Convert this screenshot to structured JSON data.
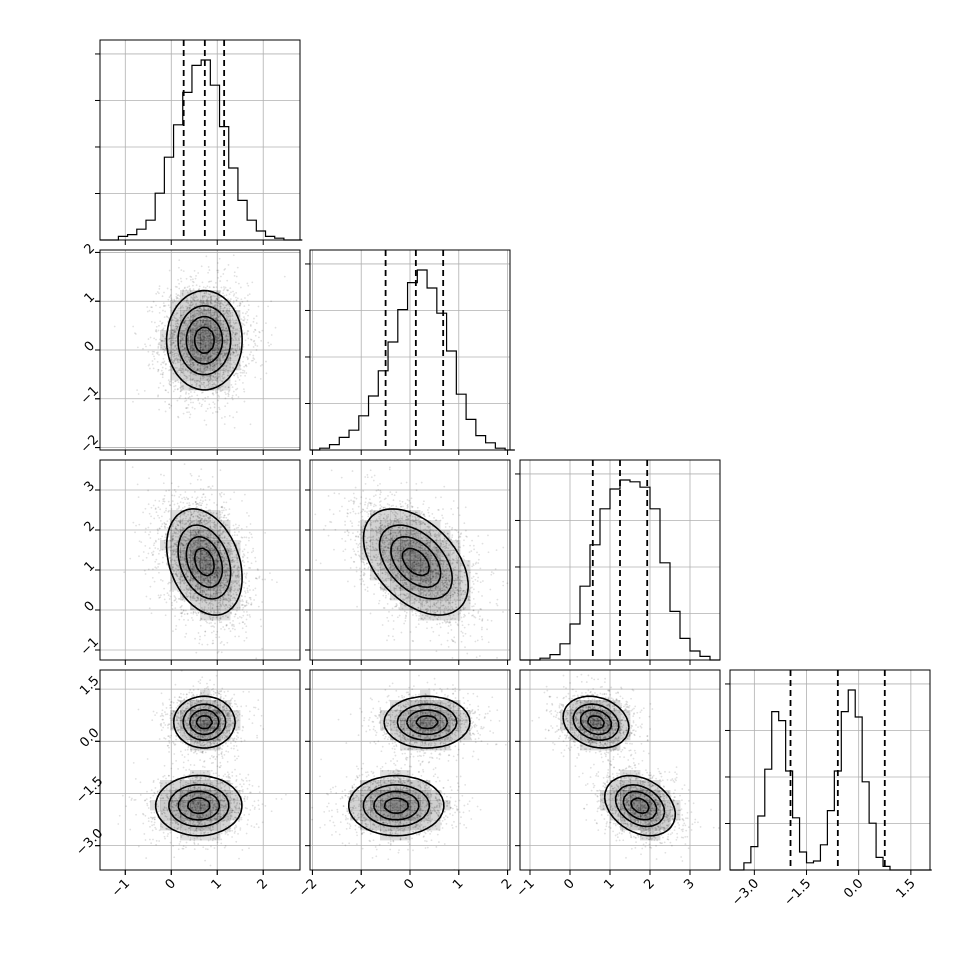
{
  "chart_data": {
    "type": "corner",
    "n_parameters": 4,
    "parameters": [
      {
        "index": 0,
        "range": [
          -1.55,
          2.8
        ],
        "ticks": [
          -1,
          0,
          1,
          2
        ],
        "tick_labels": [
          "−1",
          "0",
          "1",
          "2"
        ],
        "hist": {
          "bin_start": -1.55,
          "bin_width": 0.2,
          "heights": [
            0.0,
            0.0,
            0.02,
            0.03,
            0.06,
            0.11,
            0.26,
            0.46,
            0.64,
            0.82,
            0.97,
            1.0,
            0.86,
            0.63,
            0.4,
            0.22,
            0.11,
            0.05,
            0.02,
            0.01,
            0.0,
            0.0
          ]
        },
        "quantiles": [
          0.27,
          0.73,
          1.15
        ]
      },
      {
        "index": 1,
        "range": [
          -2.05,
          2.05
        ],
        "ticks": [
          -2,
          -1,
          0,
          1,
          2
        ],
        "tick_labels": [
          "−2",
          "−1",
          "0",
          "1",
          "2"
        ],
        "hist": {
          "bin_start": -2.05,
          "bin_width": 0.2,
          "heights": [
            0.0,
            0.01,
            0.03,
            0.07,
            0.11,
            0.19,
            0.3,
            0.44,
            0.6,
            0.78,
            0.93,
            1.0,
            0.9,
            0.76,
            0.55,
            0.31,
            0.17,
            0.08,
            0.04,
            0.01,
            0.0
          ]
        },
        "quantiles": [
          -0.5,
          0.12,
          0.68
        ]
      },
      {
        "index": 2,
        "range": [
          -1.25,
          3.75
        ],
        "ticks": [
          -1,
          0,
          1,
          2,
          3
        ],
        "tick_labels": [
          "−1",
          "0",
          "1",
          "2",
          "3"
        ],
        "hist": {
          "bin_start": -1.25,
          "bin_width": 0.25,
          "heights": [
            0.0,
            0.0,
            0.01,
            0.03,
            0.09,
            0.2,
            0.41,
            0.64,
            0.84,
            0.95,
            1.0,
            0.99,
            0.96,
            0.84,
            0.54,
            0.27,
            0.12,
            0.05,
            0.02,
            0.0
          ]
        },
        "quantiles": [
          0.57,
          1.25,
          1.93
        ]
      },
      {
        "index": 3,
        "range": [
          -3.7,
          2.05
        ],
        "ticks": [
          -3.0,
          -1.5,
          0.0,
          1.5
        ],
        "tick_labels": [
          "−3.0",
          "−1.5",
          "0.0",
          "1.5"
        ],
        "hist": {
          "bin_start": -3.7,
          "bin_width": 0.2,
          "heights": [
            0.0,
            0.0,
            0.04,
            0.13,
            0.3,
            0.56,
            0.88,
            0.83,
            0.55,
            0.29,
            0.1,
            0.04,
            0.05,
            0.14,
            0.33,
            0.55,
            0.88,
            1.0,
            0.85,
            0.49,
            0.26,
            0.07,
            0.02,
            0.0,
            0.0,
            0.0,
            0.0,
            0.0,
            0.0
          ]
        },
        "quantiles": [
          -1.96,
          -0.6,
          0.75
        ]
      }
    ],
    "pairs": [
      {
        "x": 0,
        "y": 1,
        "components": [
          {
            "w": 1.0,
            "mx": 0.72,
            "my": 0.2,
            "sx": 0.42,
            "sy": 0.52,
            "rho": 0.0
          }
        ]
      },
      {
        "x": 0,
        "y": 2,
        "components": [
          {
            "w": 1.0,
            "mx": 0.72,
            "my": 1.2,
            "sx": 0.42,
            "sy": 0.68,
            "rho": -0.3
          }
        ]
      },
      {
        "x": 1,
        "y": 2,
        "components": [
          {
            "w": 1.0,
            "mx": 0.12,
            "my": 1.2,
            "sx": 0.55,
            "sy": 0.68,
            "rho": -0.45
          }
        ]
      },
      {
        "x": 0,
        "y": 3,
        "components": [
          {
            "w": 0.5,
            "mx": 0.72,
            "my": 0.55,
            "sx": 0.34,
            "sy": 0.38,
            "rho": 0.0
          },
          {
            "w": 0.5,
            "mx": 0.6,
            "my": -1.85,
            "sx": 0.48,
            "sy": 0.44,
            "rho": 0.0
          }
        ]
      },
      {
        "x": 1,
        "y": 3,
        "components": [
          {
            "w": 0.5,
            "mx": 0.35,
            "my": 0.55,
            "sx": 0.45,
            "sy": 0.38,
            "rho": 0.0
          },
          {
            "w": 0.5,
            "mx": -0.28,
            "my": -1.85,
            "sx": 0.5,
            "sy": 0.44,
            "rho": 0.0
          }
        ]
      },
      {
        "x": 2,
        "y": 3,
        "components": [
          {
            "w": 0.5,
            "mx": 0.65,
            "my": 0.55,
            "sx": 0.42,
            "sy": 0.38,
            "rho": -0.2
          },
          {
            "w": 0.5,
            "mx": 1.75,
            "my": -1.85,
            "sx": 0.45,
            "sy": 0.44,
            "rho": -0.3
          }
        ]
      }
    ],
    "contour_levels": [
      0.11,
      0.39,
      0.68,
      0.86,
      0.96
    ],
    "grid": true,
    "title": "",
    "xlabel": "",
    "ylabel": ""
  }
}
